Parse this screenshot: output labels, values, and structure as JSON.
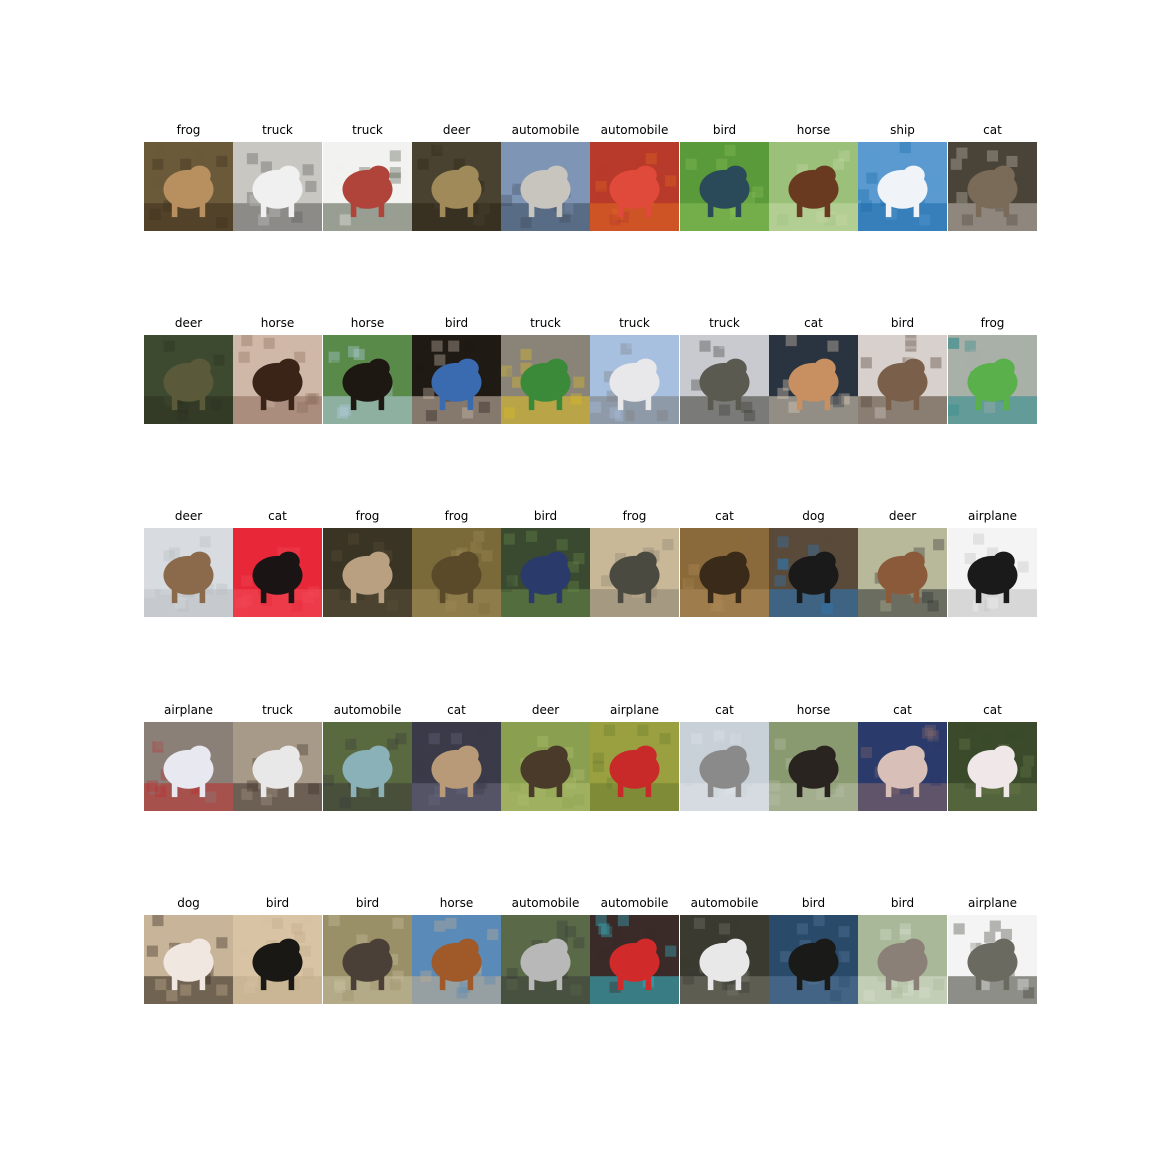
{
  "figure": {
    "rows": [
      [
        "frog",
        "truck",
        "truck",
        "deer",
        "automobile",
        "automobile",
        "bird",
        "horse",
        "ship",
        "cat"
      ],
      [
        "deer",
        "horse",
        "horse",
        "bird",
        "truck",
        "truck",
        "truck",
        "cat",
        "bird",
        "frog"
      ],
      [
        "deer",
        "cat",
        "frog",
        "frog",
        "bird",
        "frog",
        "cat",
        "dog",
        "deer",
        "airplane"
      ],
      [
        "airplane",
        "truck",
        "automobile",
        "cat",
        "deer",
        "airplane",
        "cat",
        "horse",
        "cat",
        "cat"
      ],
      [
        "dog",
        "bird",
        "bird",
        "horse",
        "automobile",
        "automobile",
        "automobile",
        "bird",
        "bird",
        "airplane"
      ]
    ],
    "palettes": [
      [
        {
          "bg": "#6b5a3a",
          "fg": "#b89060",
          "accent": "#3d2f1c",
          "icon": "frog-image"
        },
        {
          "bg": "#c9c7c2",
          "fg": "#f0f0f0",
          "accent": "#5a5a5a",
          "icon": "truck-image"
        },
        {
          "bg": "#f2f2f0",
          "fg": "#b0443b",
          "accent": "#4f5a44",
          "icon": "truck-image"
        },
        {
          "bg": "#4a4230",
          "fg": "#a08a5a",
          "accent": "#2a2418",
          "icon": "deer-image"
        },
        {
          "bg": "#7f95b5",
          "fg": "#c8c4be",
          "accent": "#3b4a5c",
          "icon": "automobile-image"
        },
        {
          "bg": "#b83a2a",
          "fg": "#e04a3a",
          "accent": "#e06a20",
          "icon": "automobile-image"
        },
        {
          "bg": "#5a9a3a",
          "fg": "#2a4a5a",
          "accent": "#8ac05a",
          "icon": "bird-image"
        },
        {
          "bg": "#9ac07a",
          "fg": "#6a3a20",
          "accent": "#c8d8a8",
          "icon": "horse-image"
        },
        {
          "bg": "#5a9ad0",
          "fg": "#f0f4f8",
          "accent": "#1a6aa8",
          "icon": "ship-image"
        },
        {
          "bg": "#4a4438",
          "fg": "#7a6a58",
          "accent": "#c8c0b8",
          "icon": "cat-image"
        }
      ],
      [
        {
          "bg": "#3e4a30",
          "fg": "#5a5a3a",
          "accent": "#2a3020",
          "icon": "deer-image"
        },
        {
          "bg": "#d0b8a8",
          "fg": "#3a2418",
          "accent": "#8a6a5a",
          "icon": "horse-image"
        },
        {
          "bg": "#5a8a4a",
          "fg": "#1e1812",
          "accent": "#b8d0e8",
          "icon": "horse-image"
        },
        {
          "bg": "#201a14",
          "fg": "#3a6ab0",
          "accent": "#d8c8b8",
          "icon": "bird-image"
        },
        {
          "bg": "#8a8478",
          "fg": "#3a8a3a",
          "accent": "#e0c020",
          "icon": "truck-image"
        },
        {
          "bg": "#a8c0e0",
          "fg": "#e8e8ea",
          "accent": "#7a7a7a",
          "icon": "truck-image"
        },
        {
          "bg": "#c8cad0",
          "fg": "#5a5a50",
          "accent": "#3a3a30",
          "icon": "truck-image"
        },
        {
          "bg": "#2a3440",
          "fg": "#c89060",
          "accent": "#e8d8c0",
          "icon": "cat-image"
        },
        {
          "bg": "#d8d0cc",
          "fg": "#7a604a",
          "accent": "#4a3a2a",
          "icon": "bird-image"
        },
        {
          "bg": "#a8b0a8",
          "fg": "#5ab04a",
          "accent": "#2a8a8a",
          "icon": "frog-image"
        }
      ],
      [
        {
          "bg": "#d8dce0",
          "fg": "#8a6a4a",
          "accent": "#b8bcc0",
          "icon": "deer-image"
        },
        {
          "bg": "#e82838",
          "fg": "#1a1414",
          "accent": "#f04a58",
          "icon": "cat-image"
        },
        {
          "bg": "#3a3424",
          "fg": "#b8a080",
          "accent": "#5a5038",
          "icon": "frog-image"
        },
        {
          "bg": "#7a6a3a",
          "fg": "#5a4a2a",
          "accent": "#a08a5a",
          "icon": "frog-image"
        },
        {
          "bg": "#3a4a30",
          "fg": "#2a3a6a",
          "accent": "#6a8a4a",
          "icon": "bird-image"
        },
        {
          "bg": "#c8b898",
          "fg": "#4a4a40",
          "accent": "#8a8070",
          "icon": "frog-image"
        },
        {
          "bg": "#8a6a3a",
          "fg": "#3a2a1a",
          "accent": "#b08a5a",
          "icon": "cat-image"
        },
        {
          "bg": "#5a4a3a",
          "fg": "#1a1a1a",
          "accent": "#2a7ac0",
          "icon": "dog-image"
        },
        {
          "bg": "#b8b89a",
          "fg": "#8a5a3a",
          "accent": "#2a3030",
          "icon": "deer-image"
        },
        {
          "bg": "#f4f4f4",
          "fg": "#1a1a1a",
          "accent": "#c0c0c0",
          "icon": "airplane-image"
        }
      ],
      [
        {
          "bg": "#8a8078",
          "fg": "#e8e8f0",
          "accent": "#c02a2a",
          "icon": "airplane-image"
        },
        {
          "bg": "#a89a88",
          "fg": "#e8e8e8",
          "accent": "#3a3028",
          "icon": "truck-image"
        },
        {
          "bg": "#5a6a40",
          "fg": "#8ab0b8",
          "accent": "#3a3a38",
          "icon": "automobile-image"
        },
        {
          "bg": "#3a3a48",
          "fg": "#b89a78",
          "accent": "#6a6a80",
          "icon": "cat-image"
        },
        {
          "bg": "#8aa050",
          "fg": "#4a3a2a",
          "accent": "#b0c070",
          "icon": "deer-image"
        },
        {
          "bg": "#9aa040",
          "fg": "#c82a2a",
          "accent": "#6a7a30",
          "icon": "airplane-image"
        },
        {
          "bg": "#c8d0d8",
          "fg": "#8a8a8a",
          "accent": "#e0e4e8",
          "icon": "cat-image"
        },
        {
          "bg": "#8a9a70",
          "fg": "#2a2420",
          "accent": "#b8c0a8",
          "icon": "horse-image"
        },
        {
          "bg": "#2a3a6a",
          "fg": "#d8c0b8",
          "accent": "#8a6a6a",
          "icon": "cat-image"
        },
        {
          "bg": "#3a4a2a",
          "fg": "#f0e8e8",
          "accent": "#6a7a4a",
          "icon": "cat-image"
        }
      ],
      [
        {
          "bg": "#c8b498",
          "fg": "#f0e8e0",
          "accent": "#2a2018",
          "icon": "dog-image"
        },
        {
          "bg": "#d8c4a4",
          "fg": "#1a1814",
          "accent": "#c0aa88",
          "icon": "bird-image"
        },
        {
          "bg": "#9a9068",
          "fg": "#4a4038",
          "accent": "#c8c0a0",
          "icon": "bird-image"
        },
        {
          "bg": "#5a8ab8",
          "fg": "#a05a2a",
          "accent": "#c8b090",
          "icon": "horse-image"
        },
        {
          "bg": "#5a6a48",
          "fg": "#b8b8b8",
          "accent": "#3a3a3a",
          "icon": "automobile-image"
        },
        {
          "bg": "#3a2a28",
          "fg": "#d02a2a",
          "accent": "#3ac0d0",
          "icon": "automobile-image"
        },
        {
          "bg": "#3a3a30",
          "fg": "#e8e8e8",
          "accent": "#7a7a70",
          "icon": "automobile-image"
        },
        {
          "bg": "#2a4a6a",
          "fg": "#1a1a18",
          "accent": "#5a7a9a",
          "icon": "bird-image"
        },
        {
          "bg": "#a8b898",
          "fg": "#8a8078",
          "accent": "#d8e0d0",
          "icon": "bird-image"
        },
        {
          "bg": "#f4f4f4",
          "fg": "#6a6a60",
          "accent": "#3a3a30",
          "icon": "airplane-image"
        }
      ]
    ]
  }
}
